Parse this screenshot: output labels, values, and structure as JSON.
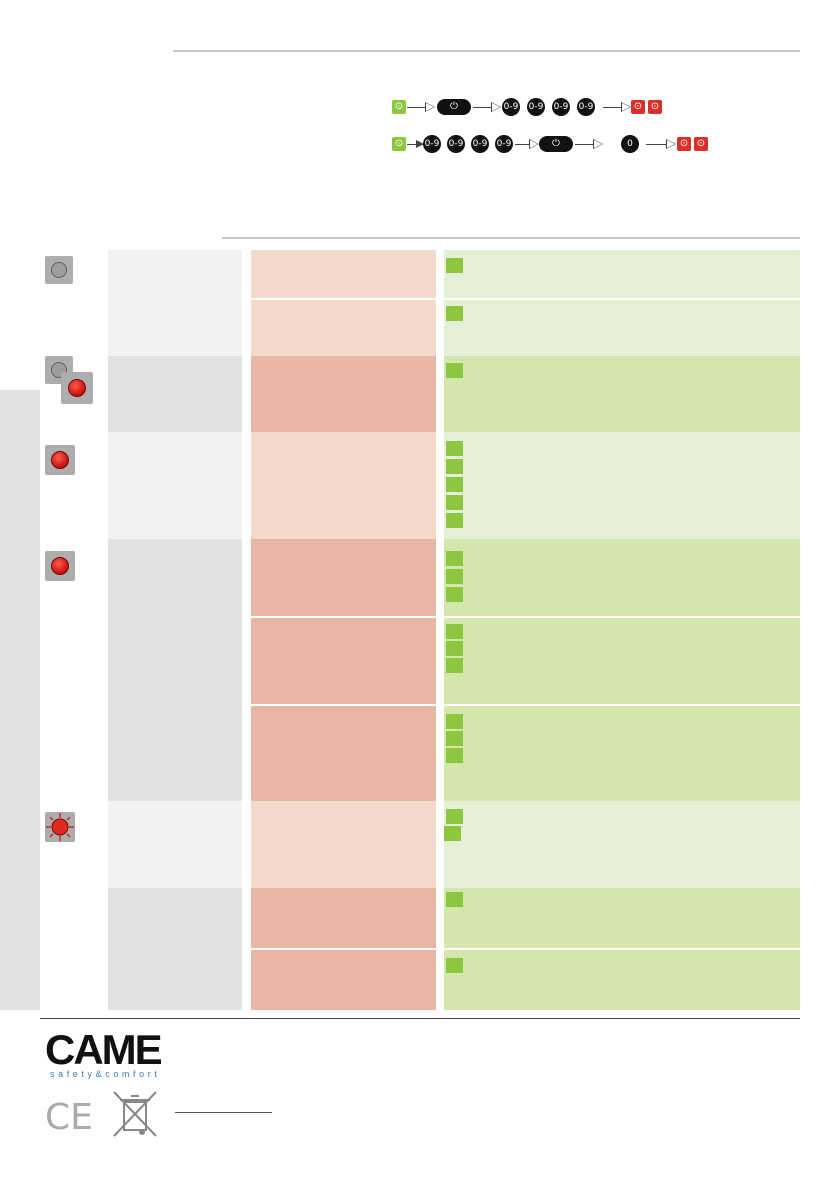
{
  "sequences": {
    "row1": [
      "unlock-icon",
      "key-button",
      "0-9",
      "0-9",
      "0-9",
      "0-9",
      "lock-icon",
      "lock-icon"
    ],
    "row2": [
      "unlock-icon",
      "0-9",
      "0-9",
      "0-9",
      "0-9",
      "key-button",
      "0",
      "lock-icon",
      "lock-icon"
    ],
    "digit_label": "0-9",
    "zero_label": "0"
  },
  "brand": {
    "name": "CAME",
    "tagline": "safety&comfort"
  },
  "colors": {
    "led_red": "#d82020",
    "status_green": "#8dc63f",
    "lock_red": "#d8302b",
    "brand_blue": "#3e79c1"
  },
  "table": {
    "rows": 11,
    "bullets_per_row": [
      1,
      1,
      1,
      5,
      3,
      3,
      3,
      2,
      1,
      1
    ]
  }
}
